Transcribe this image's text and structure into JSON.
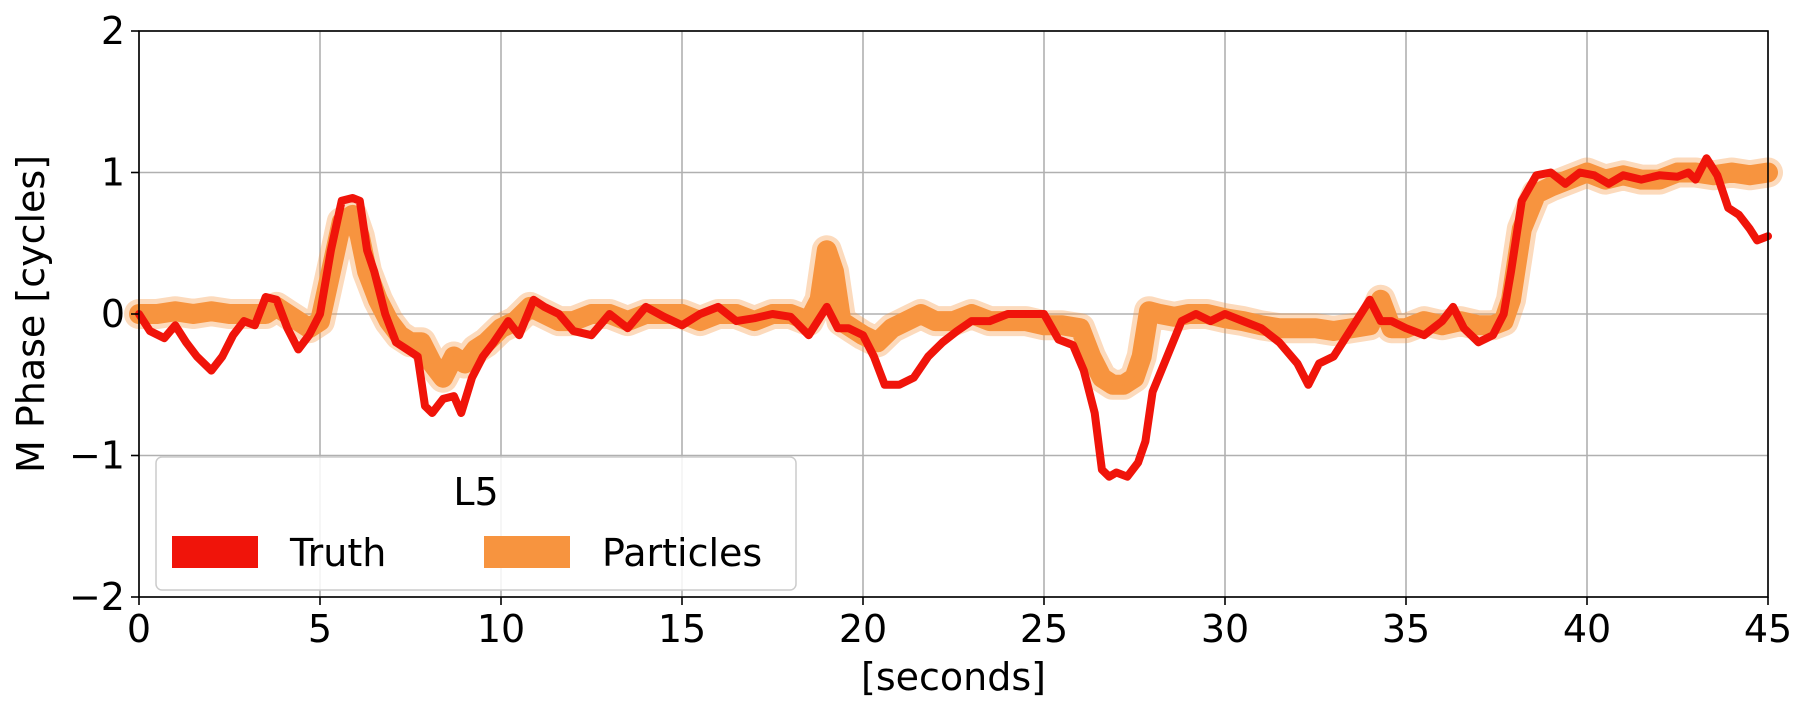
{
  "chart_data": {
    "type": "line",
    "title": "",
    "xlabel": "[seconds]",
    "ylabel": "M Phase [cycles]",
    "xlim": [
      0,
      45
    ],
    "ylim": [
      -2,
      2
    ],
    "x_ticks": [
      0,
      5,
      10,
      15,
      20,
      25,
      30,
      35,
      40,
      45
    ],
    "x_tick_labels": [
      "0",
      "5",
      "10",
      "15",
      "20",
      "25",
      "30",
      "35",
      "40",
      "45"
    ],
    "y_ticks": [
      -2,
      -1,
      0,
      1,
      2
    ],
    "y_tick_labels": [
      "−2",
      "−1",
      "0",
      "1",
      "2"
    ],
    "grid": true,
    "legend": {
      "title": "L5",
      "placement": "lower-left",
      "entries": [
        "Truth",
        "Particles"
      ]
    },
    "colors": {
      "truth": "#f0140a",
      "particles": "#f7943f"
    },
    "series": [
      {
        "name": "Truth",
        "x": [
          0,
          0.3,
          0.7,
          1.0,
          1.3,
          1.6,
          2.0,
          2.3,
          2.6,
          2.9,
          3.2,
          3.5,
          3.8,
          4.1,
          4.4,
          4.7,
          5.0,
          5.3,
          5.6,
          5.9,
          6.1,
          6.3,
          6.5,
          6.8,
          7.1,
          7.4,
          7.7,
          7.9,
          8.1,
          8.4,
          8.7,
          8.9,
          9.2,
          9.5,
          9.8,
          10.2,
          10.5,
          10.9,
          11.2,
          11.6,
          12.0,
          12.5,
          13.0,
          13.5,
          14.0,
          14.5,
          15.0,
          15.5,
          16.0,
          16.5,
          17.0,
          17.5,
          18.0,
          18.5,
          19.0,
          19.3,
          19.6,
          20.0,
          20.3,
          20.6,
          21.0,
          21.4,
          21.8,
          22.2,
          22.6,
          23.0,
          23.5,
          24.0,
          24.5,
          25.0,
          25.4,
          25.8,
          26.1,
          26.4,
          26.6,
          26.8,
          27.0,
          27.3,
          27.6,
          27.8,
          28.0,
          28.4,
          28.8,
          29.2,
          29.6,
          30.0,
          30.5,
          31.0,
          31.5,
          32.0,
          32.3,
          32.6,
          33.0,
          33.5,
          34.0,
          34.3,
          34.6,
          35.0,
          35.5,
          36.0,
          36.3,
          36.6,
          37.0,
          37.4,
          37.7,
          37.9,
          38.2,
          38.6,
          39.0,
          39.4,
          39.8,
          40.2,
          40.6,
          41.0,
          41.5,
          42.0,
          42.5,
          42.8,
          43.0,
          43.3,
          43.6,
          43.9,
          44.2,
          44.5,
          44.7,
          45.0
        ],
        "values": [
          0.0,
          -0.12,
          -0.17,
          -0.08,
          -0.2,
          -0.3,
          -0.4,
          -0.3,
          -0.15,
          -0.05,
          -0.08,
          0.12,
          0.1,
          -0.1,
          -0.25,
          -0.15,
          0.0,
          0.45,
          0.8,
          0.82,
          0.8,
          0.45,
          0.3,
          0.0,
          -0.2,
          -0.25,
          -0.3,
          -0.65,
          -0.7,
          -0.6,
          -0.58,
          -0.7,
          -0.45,
          -0.3,
          -0.2,
          -0.05,
          -0.15,
          0.1,
          0.05,
          0.0,
          -0.12,
          -0.15,
          0.0,
          -0.1,
          0.05,
          -0.02,
          -0.08,
          0.0,
          0.05,
          -0.05,
          -0.03,
          0.0,
          -0.02,
          -0.15,
          0.05,
          -0.1,
          -0.1,
          -0.15,
          -0.3,
          -0.5,
          -0.5,
          -0.45,
          -0.3,
          -0.2,
          -0.12,
          -0.05,
          -0.05,
          0.0,
          0.0,
          0.0,
          -0.18,
          -0.22,
          -0.4,
          -0.7,
          -1.1,
          -1.15,
          -1.12,
          -1.15,
          -1.05,
          -0.9,
          -0.55,
          -0.3,
          -0.05,
          0.0,
          -0.05,
          0.0,
          -0.05,
          -0.1,
          -0.2,
          -0.35,
          -0.5,
          -0.35,
          -0.3,
          -0.1,
          0.1,
          -0.05,
          -0.05,
          -0.1,
          -0.15,
          -0.05,
          0.05,
          -0.1,
          -0.2,
          -0.15,
          0.0,
          0.3,
          0.8,
          0.98,
          1.0,
          0.92,
          1.0,
          0.98,
          0.92,
          0.98,
          0.95,
          0.98,
          0.97,
          1.0,
          0.95,
          1.1,
          0.98,
          0.75,
          0.7,
          0.6,
          0.52,
          0.55
        ]
      },
      {
        "name": "Particles",
        "x": [
          0,
          0.5,
          1.0,
          1.5,
          2.0,
          2.5,
          3.0,
          3.5,
          3.8,
          4.1,
          4.4,
          4.7,
          5.0,
          5.3,
          5.6,
          5.9,
          6.1,
          6.3,
          6.6,
          6.9,
          7.2,
          7.5,
          7.8,
          8.1,
          8.4,
          8.7,
          9.0,
          9.3,
          9.6,
          10.0,
          10.4,
          10.8,
          11.2,
          11.6,
          12.0,
          12.5,
          13.0,
          13.5,
          14.0,
          14.5,
          15.0,
          15.5,
          16.0,
          16.5,
          17.0,
          17.5,
          18.0,
          18.5,
          18.8,
          19.0,
          19.2,
          19.4,
          19.7,
          20.0,
          20.4,
          20.8,
          21.2,
          21.6,
          22.0,
          22.5,
          23.0,
          23.5,
          24.0,
          24.5,
          25.0,
          25.5,
          26.0,
          26.3,
          26.6,
          26.9,
          27.2,
          27.5,
          27.7,
          27.9,
          28.2,
          28.6,
          29.0,
          29.5,
          30.0,
          30.5,
          31.0,
          31.5,
          32.0,
          32.5,
          33.0,
          33.5,
          34.0,
          34.3,
          34.6,
          35.0,
          35.5,
          36.0,
          36.5,
          37.0,
          37.4,
          37.7,
          37.9,
          38.2,
          38.6,
          39.0,
          39.5,
          40.0,
          40.5,
          41.0,
          41.5,
          42.0,
          42.5,
          43.0,
          43.5,
          44.0,
          44.5,
          45.0
        ],
        "values": [
          0.0,
          0.0,
          0.02,
          0.0,
          0.02,
          0.0,
          0.0,
          0.0,
          0.05,
          0.0,
          -0.05,
          -0.1,
          -0.05,
          0.3,
          0.65,
          0.7,
          0.55,
          0.3,
          0.1,
          -0.05,
          -0.15,
          -0.2,
          -0.2,
          -0.35,
          -0.45,
          -0.3,
          -0.35,
          -0.25,
          -0.2,
          -0.1,
          -0.05,
          0.05,
          0.0,
          -0.05,
          -0.05,
          0.0,
          0.0,
          -0.05,
          0.0,
          0.0,
          0.0,
          -0.05,
          0.0,
          0.0,
          -0.05,
          0.0,
          0.0,
          -0.05,
          0.1,
          0.45,
          0.3,
          -0.05,
          -0.1,
          -0.15,
          -0.2,
          -0.1,
          -0.05,
          0.0,
          -0.05,
          -0.05,
          0.0,
          -0.05,
          -0.05,
          -0.05,
          -0.08,
          -0.08,
          -0.1,
          -0.3,
          -0.45,
          -0.5,
          -0.5,
          -0.45,
          -0.3,
          0.02,
          0.0,
          -0.02,
          0.0,
          0.0,
          -0.03,
          -0.05,
          -0.08,
          -0.1,
          -0.1,
          -0.1,
          -0.12,
          -0.1,
          -0.08,
          0.1,
          -0.1,
          -0.1,
          -0.05,
          -0.08,
          -0.05,
          -0.08,
          -0.08,
          -0.05,
          0.1,
          0.6,
          0.85,
          0.9,
          0.95,
          1.0,
          0.95,
          0.98,
          0.95,
          0.95,
          1.0,
          1.0,
          0.98,
          1.0,
          0.98,
          1.0
        ]
      }
    ]
  }
}
